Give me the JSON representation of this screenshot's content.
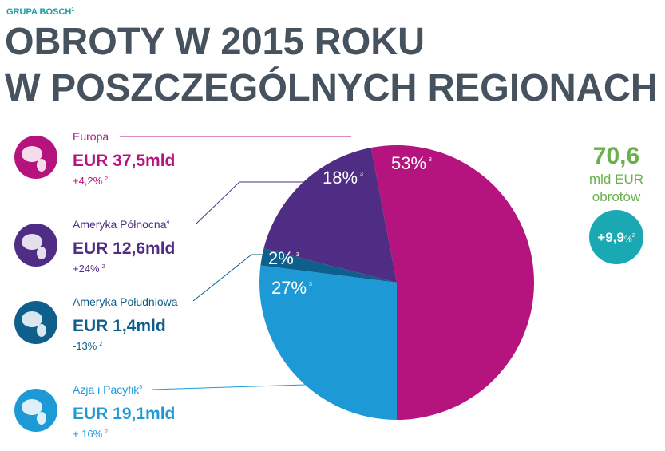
{
  "brand": {
    "text": "GRUPA BOSCH",
    "note": "1"
  },
  "chart_data": {
    "type": "pie",
    "title": [
      "OBROTY W 2015 ROKU",
      "W POSZCZEGÓLNYCH REGIONACH"
    ],
    "categories": [
      "Europa",
      "Ameryka Północna",
      "Ameryka Południowa",
      "Azja i Pacyfik"
    ],
    "category_notes": [
      null,
      "4",
      null,
      "5"
    ],
    "values": [
      53,
      18,
      2,
      27
    ],
    "value_labels": [
      "53%",
      "18%",
      "2%",
      "27%"
    ],
    "value_label_notes": [
      "3",
      "3",
      "3",
      "3"
    ],
    "colors": [
      "#b5147e",
      "#4f2d84",
      "#0e5f8c",
      "#1d9ad6"
    ],
    "amounts": [
      "EUR 37,5mld",
      "EUR 12,6mld",
      "EUR 1,4mld",
      "EUR 19,1mld"
    ],
    "growth": [
      "+4,2%",
      "+24%",
      "-13%",
      "+ 16%"
    ],
    "growth_notes": [
      "2",
      "2",
      "2",
      "2"
    ]
  },
  "total": {
    "value": "70,6",
    "unit": "mld EUR",
    "caption": "obrotów",
    "growth": "+9,9",
    "growth_unit": "%",
    "growth_note": "2"
  }
}
